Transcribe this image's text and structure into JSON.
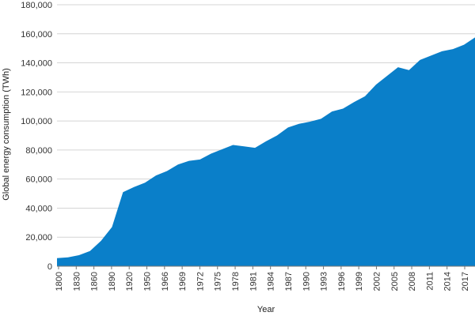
{
  "chart_data": {
    "type": "area",
    "xlabel": "Year",
    "ylabel": "Global energy consumption (TWh)",
    "ylim": [
      0,
      180000
    ],
    "y_ticks": [
      {
        "value": 0,
        "label": "0"
      },
      {
        "value": 20000,
        "label": "20,000"
      },
      {
        "value": 40000,
        "label": "40,000"
      },
      {
        "value": 60000,
        "label": "60,000"
      },
      {
        "value": 80000,
        "label": "80,000"
      },
      {
        "value": 100000,
        "label": "100,000"
      },
      {
        "value": 120000,
        "label": "120,000"
      },
      {
        "value": 140000,
        "label": "140,000"
      },
      {
        "value": 160000,
        "label": "160,000"
      },
      {
        "value": 180000,
        "label": "180,000"
      }
    ],
    "x_tick_labels": [
      "1800",
      "1830",
      "1860",
      "1890",
      "1920",
      "1950",
      "1966",
      "1969",
      "1972",
      "1975",
      "1978",
      "1981",
      "1984",
      "1987",
      "1990",
      "1993",
      "1996",
      "1999",
      "2002",
      "2005",
      "2008",
      "2011",
      "2014",
      "2017"
    ],
    "grid": "horizontal",
    "fill_color": "#0a7fc9",
    "series": [
      {
        "values": [
          5600,
          6100,
          7600,
          10500,
          17500,
          27000,
          51000,
          54500,
          57500,
          62500,
          65500,
          70000,
          72500,
          73500,
          77500,
          80500,
          83500,
          82500,
          81500,
          86000,
          90000,
          95500,
          98000,
          99500,
          101500,
          106500,
          108500,
          113000,
          117000,
          125000,
          131000,
          137000,
          135000,
          142000,
          145000,
          148000,
          149500,
          152500,
          157500
        ]
      }
    ]
  }
}
